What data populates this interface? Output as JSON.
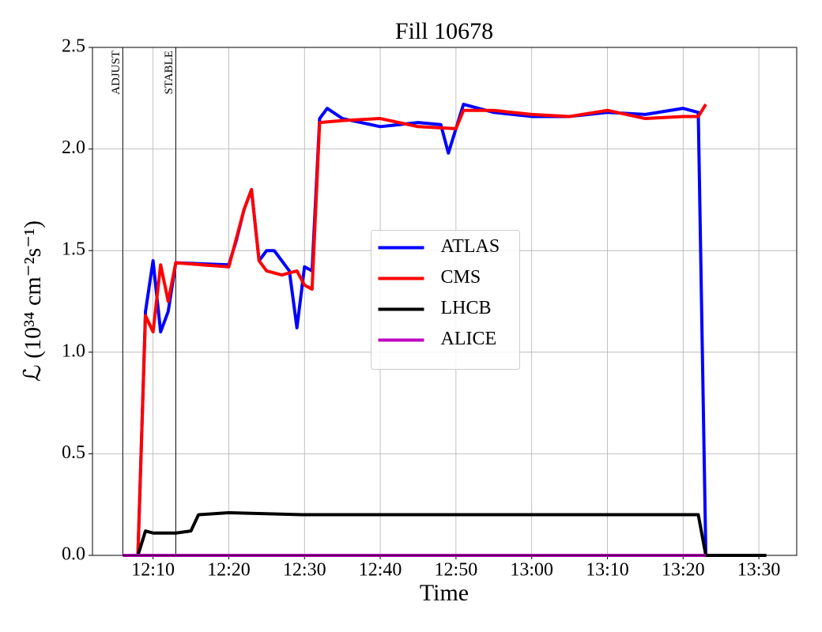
{
  "chart_data": {
    "type": "line",
    "title": "Fill 10678",
    "xlabel": "Time",
    "ylabel": "ℒ (10³⁴ cm⁻²s⁻¹)",
    "xlim": [
      "12:02",
      "13:35"
    ],
    "xticks": [
      "12:10",
      "12:20",
      "12:30",
      "12:40",
      "12:50",
      "13:00",
      "13:10",
      "13:20",
      "13:30"
    ],
    "ylim": [
      0,
      2.5
    ],
    "yticks": [
      {
        "value": 0,
        "label": "0.0"
      },
      0.5,
      {
        "value": 1,
        "label": "1.0"
      },
      1.5,
      {
        "value": 2,
        "label": "2.0"
      },
      2.5
    ],
    "grid": true,
    "legend": "center",
    "markers": [
      {
        "x": "12:06",
        "label": "ADJUST"
      },
      {
        "x": "12:13",
        "label": "STABLE"
      }
    ],
    "series": [
      {
        "name": "ATLAS",
        "color": "#0000ff",
        "x": [
          "12:08",
          "12:09",
          "12:10",
          "12:11",
          "12:12",
          "12:13",
          "12:20",
          "12:21",
          "12:22",
          "12:23",
          "12:24",
          "12:25",
          "12:26",
          "12:27",
          "12:28",
          "12:29",
          "12:30",
          "12:31",
          "12:32",
          "12:33",
          "12:35",
          "12:40",
          "12:45",
          "12:48",
          "12:49",
          "12:50",
          "12:51",
          "12:55",
          "13:00",
          "13:05",
          "13:10",
          "13:15",
          "13:20",
          "13:22",
          "13:23"
        ],
        "values": [
          0,
          1.2,
          1.45,
          1.1,
          1.2,
          1.44,
          1.43,
          1.55,
          1.7,
          1.8,
          1.45,
          1.5,
          1.5,
          1.45,
          1.4,
          1.12,
          1.42,
          1.4,
          2.15,
          2.2,
          2.15,
          2.11,
          2.13,
          2.12,
          1.98,
          2.1,
          2.22,
          2.18,
          2.16,
          2.16,
          2.18,
          2.17,
          2.2,
          2.18,
          0
        ]
      },
      {
        "name": "CMS",
        "color": "#ff0000",
        "x": [
          "12:08",
          "12:09",
          "12:10",
          "12:11",
          "12:12",
          "12:13",
          "12:20",
          "12:22",
          "12:23",
          "12:24",
          "12:25",
          "12:27",
          "12:29",
          "12:30",
          "12:31",
          "12:32",
          "12:35",
          "12:40",
          "12:45",
          "12:50",
          "12:51",
          "12:55",
          "13:00",
          "13:05",
          "13:10",
          "13:15",
          "13:20",
          "13:22",
          "13:23"
        ],
        "values": [
          0,
          1.18,
          1.1,
          1.43,
          1.25,
          1.44,
          1.42,
          1.7,
          1.8,
          1.45,
          1.4,
          1.38,
          1.4,
          1.33,
          1.31,
          2.13,
          2.14,
          2.15,
          2.11,
          2.1,
          2.19,
          2.19,
          2.17,
          2.16,
          2.19,
          2.15,
          2.16,
          2.16,
          2.22
        ]
      },
      {
        "name": "LHCB",
        "color": "#000000",
        "x": [
          "12:08",
          "12:09",
          "12:10",
          "12:13",
          "12:15",
          "12:16",
          "12:20",
          "12:30",
          "12:40",
          "12:50",
          "13:00",
          "13:10",
          "13:20",
          "13:22",
          "13:23",
          "13:31"
        ],
        "values": [
          0,
          0.12,
          0.11,
          0.11,
          0.12,
          0.2,
          0.21,
          0.2,
          0.2,
          0.2,
          0.2,
          0.2,
          0.2,
          0.2,
          0,
          0
        ]
      },
      {
        "name": "ALICE",
        "color": "#bf00bf",
        "x": [
          "12:06",
          "13:23"
        ],
        "values": [
          0,
          0
        ]
      }
    ]
  }
}
